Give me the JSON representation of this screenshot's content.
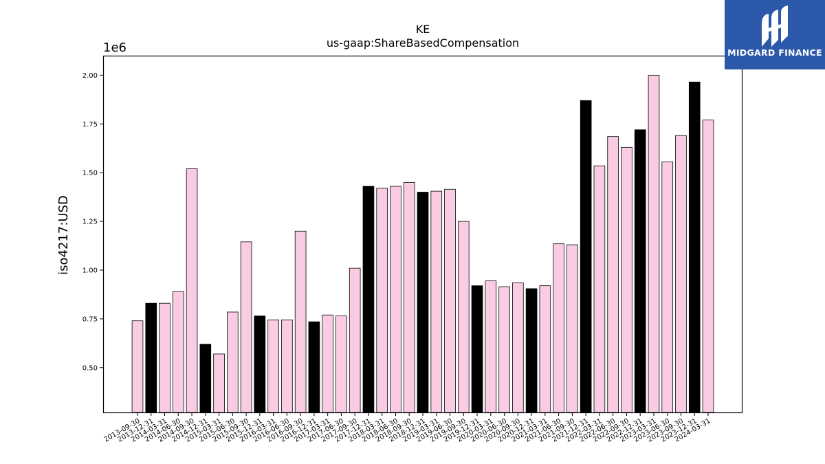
{
  "chart_data": {
    "type": "bar",
    "title": "KE",
    "subtitle": "us-gaap:ShareBasedCompensation",
    "xlabel": "",
    "ylabel": "iso4217:USD",
    "offset_label": "1e6",
    "ylim": [
      270000,
      2100000
    ],
    "yticks": [
      "0.50",
      "0.75",
      "1.00",
      "1.25",
      "1.50",
      "1.75",
      "2.00"
    ],
    "ytick_values": [
      500000,
      750000,
      1000000,
      1250000,
      1500000,
      1750000,
      2000000
    ],
    "grid": false,
    "colors": {
      "normal": "#f9cce3",
      "highlight": "#000000",
      "edge": "#000000"
    },
    "categories": [
      "2013-09-30",
      "2013-12-31",
      "2014-03-31",
      "2014-06-30",
      "2014-09-30",
      "2014-12-31",
      "2015-03-31",
      "2015-06-30",
      "2015-09-30",
      "2015-12-31",
      "2016-03-31",
      "2016-06-30",
      "2016-09-30",
      "2016-12-31",
      "2017-03-31",
      "2017-06-30",
      "2017-09-30",
      "2017-12-31",
      "2018-03-31",
      "2018-06-30",
      "2018-09-30",
      "2018-12-31",
      "2019-03-31",
      "2019-06-30",
      "2019-09-30",
      "2019-12-31",
      "2020-03-31",
      "2020-06-30",
      "2020-09-30",
      "2020-12-31",
      "2021-03-31",
      "2021-06-30",
      "2021-09-30",
      "2021-12-31",
      "2022-03-31",
      "2022-06-30",
      "2022-09-30",
      "2022-12-31",
      "2023-03-31",
      "2023-06-30",
      "2023-09-30",
      "2023-12-31",
      "2024-03-31"
    ],
    "values": [
      740000,
      830000,
      830000,
      890000,
      1520000,
      620000,
      570000,
      785000,
      1145000,
      765000,
      745000,
      745000,
      1200000,
      735000,
      770000,
      765000,
      1010000,
      1430000,
      1420000,
      1430000,
      1450000,
      1400000,
      1405000,
      1415000,
      1250000,
      920000,
      945000,
      915000,
      935000,
      905000,
      920000,
      1135000,
      1130000,
      1870000,
      1535000,
      1685000,
      1630000,
      1720000,
      2000000,
      1555000,
      1690000,
      1965000,
      1770000
    ],
    "highlight": [
      false,
      true,
      false,
      false,
      false,
      true,
      false,
      false,
      false,
      true,
      false,
      false,
      false,
      true,
      false,
      false,
      false,
      true,
      false,
      false,
      false,
      true,
      false,
      false,
      false,
      true,
      false,
      false,
      false,
      true,
      false,
      false,
      false,
      true,
      false,
      false,
      false,
      true,
      false,
      false,
      false,
      true,
      false
    ]
  },
  "logo": {
    "text": "MIDGARD FINANCE",
    "icon": "midgard-logo-icon"
  }
}
